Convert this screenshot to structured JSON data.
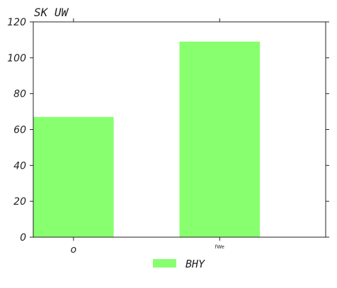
{
  "chart_data": {
    "type": "bar",
    "title": "SK UW",
    "categories": [
      "o",
      "fWe"
    ],
    "series": [
      {
        "name": "BHY",
        "values": [
          67,
          109
        ]
      }
    ],
    "ylim": [
      0,
      120
    ],
    "yticks": [
      0,
      20,
      40,
      60,
      80,
      100,
      120
    ],
    "xlabel": "",
    "ylabel": "",
    "grid": false,
    "legend_position": "bottom-center",
    "bar_color": "#88ff6e",
    "axis_color": "#222222"
  }
}
